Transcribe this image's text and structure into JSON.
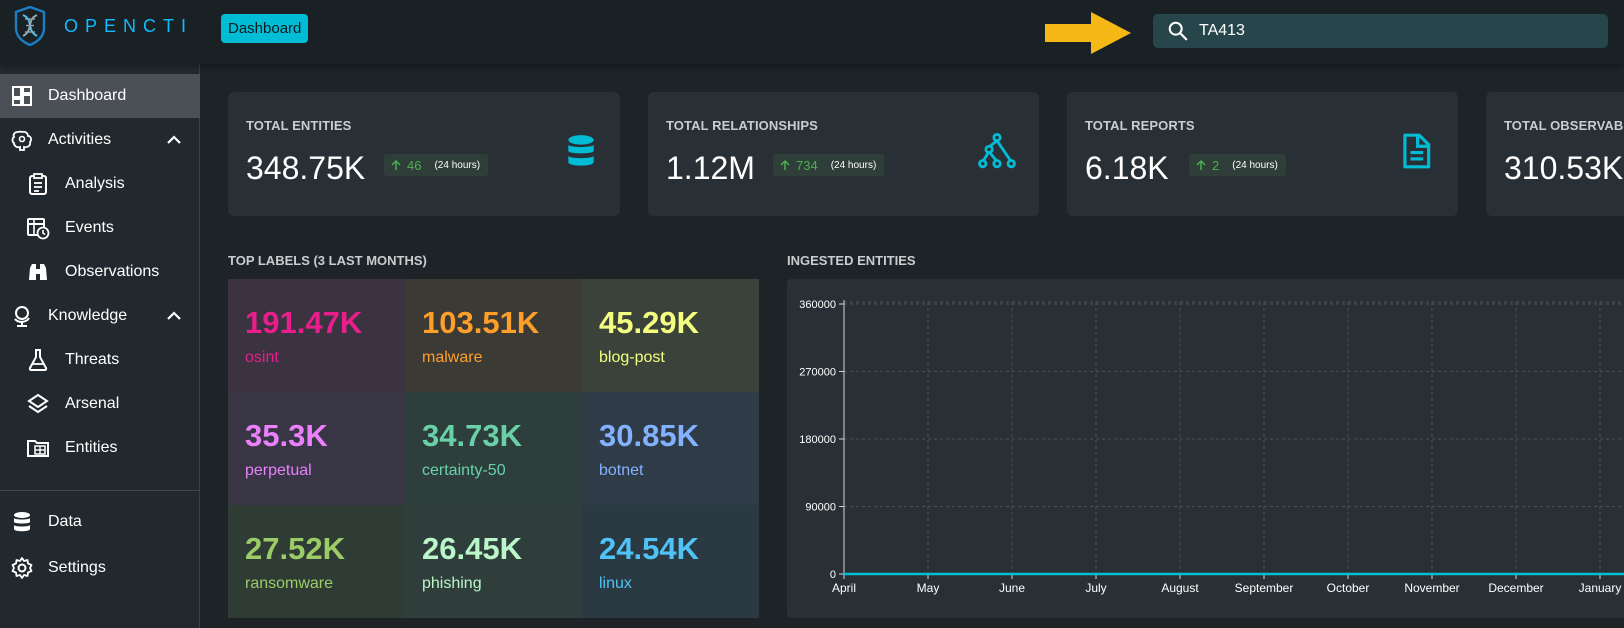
{
  "app": {
    "name": "OPENCTI"
  },
  "header": {
    "badge": "Dashboard",
    "search_value": "TA413"
  },
  "sidebar": {
    "items": [
      {
        "label": "Dashboard",
        "icon": "dashboard-icon",
        "active": true
      },
      {
        "label": "Activities",
        "icon": "brain-icon",
        "expanded": true
      },
      {
        "label": "Analysis",
        "icon": "clipboard-icon"
      },
      {
        "label": "Events",
        "icon": "calendar-clock-icon"
      },
      {
        "label": "Observations",
        "icon": "binoculars-icon"
      },
      {
        "label": "Knowledge",
        "icon": "globe-icon",
        "expanded": true
      },
      {
        "label": "Threats",
        "icon": "flask-icon"
      },
      {
        "label": "Arsenal",
        "icon": "layers-icon"
      },
      {
        "label": "Entities",
        "icon": "folder-table-icon"
      },
      {
        "label": "Data",
        "icon": "database-icon"
      },
      {
        "label": "Settings",
        "icon": "gear-icon"
      }
    ]
  },
  "cards": [
    {
      "title": "TOTAL ENTITIES",
      "value": "348.75K",
      "delta": "46",
      "period": "(24 hours)",
      "icon": "database-icon"
    },
    {
      "title": "TOTAL RELATIONSHIPS",
      "value": "1.12M",
      "delta": "734",
      "period": "(24 hours)",
      "icon": "graph-icon"
    },
    {
      "title": "TOTAL REPORTS",
      "value": "6.18K",
      "delta": "2",
      "period": "(24 hours)",
      "icon": "file-document-icon"
    },
    {
      "title": "TOTAL OBSERVABL",
      "value": "310.53K"
    }
  ],
  "top_labels": {
    "title": "TOP LABELS (3 LAST MONTHS)",
    "items": [
      {
        "value": "191.47K",
        "name": "osint",
        "color": "#e91e8c",
        "bg": "#3b3340"
      },
      {
        "value": "103.51K",
        "name": "malware",
        "color": "#ff9f2a",
        "bg": "#3b3a35"
      },
      {
        "value": "45.29K",
        "name": "blog-post",
        "color": "#f4ff81",
        "bg": "#3a4239"
      },
      {
        "value": "35.3K",
        "name": "perpetual",
        "color": "#ea80fc",
        "bg": "#383544"
      },
      {
        "value": "34.73K",
        "name": "certainty-50",
        "color": "#69d1a8",
        "bg": "#2e3e3d"
      },
      {
        "value": "30.85K",
        "name": "botnet",
        "color": "#82b1ff",
        "bg": "#2f3b46"
      },
      {
        "value": "27.52K",
        "name": "ransomware",
        "color": "#9ccc65",
        "bg": "#2f3c35"
      },
      {
        "value": "26.45K",
        "name": "phishing",
        "color": "#b9f6ca",
        "bg": "#2f3e3a"
      },
      {
        "value": "24.54K",
        "name": "linux",
        "color": "#4fc3f7",
        "bg": "#2b3a42"
      }
    ]
  },
  "ingested": {
    "title": "INGESTED ENTITIES"
  },
  "chart_data": {
    "type": "line",
    "title": "INGESTED ENTITIES",
    "categories": [
      "April",
      "May",
      "June",
      "July",
      "August",
      "September",
      "October",
      "November",
      "December",
      "January"
    ],
    "series": [
      {
        "values": [
          0,
          0,
          0,
          0,
          0,
          0,
          0,
          0,
          0,
          0
        ],
        "color": "#00bcd4"
      }
    ],
    "yticks": [
      0,
      90000,
      180000,
      270000,
      360000
    ],
    "ylim": [
      0,
      360000
    ],
    "grid": true
  }
}
